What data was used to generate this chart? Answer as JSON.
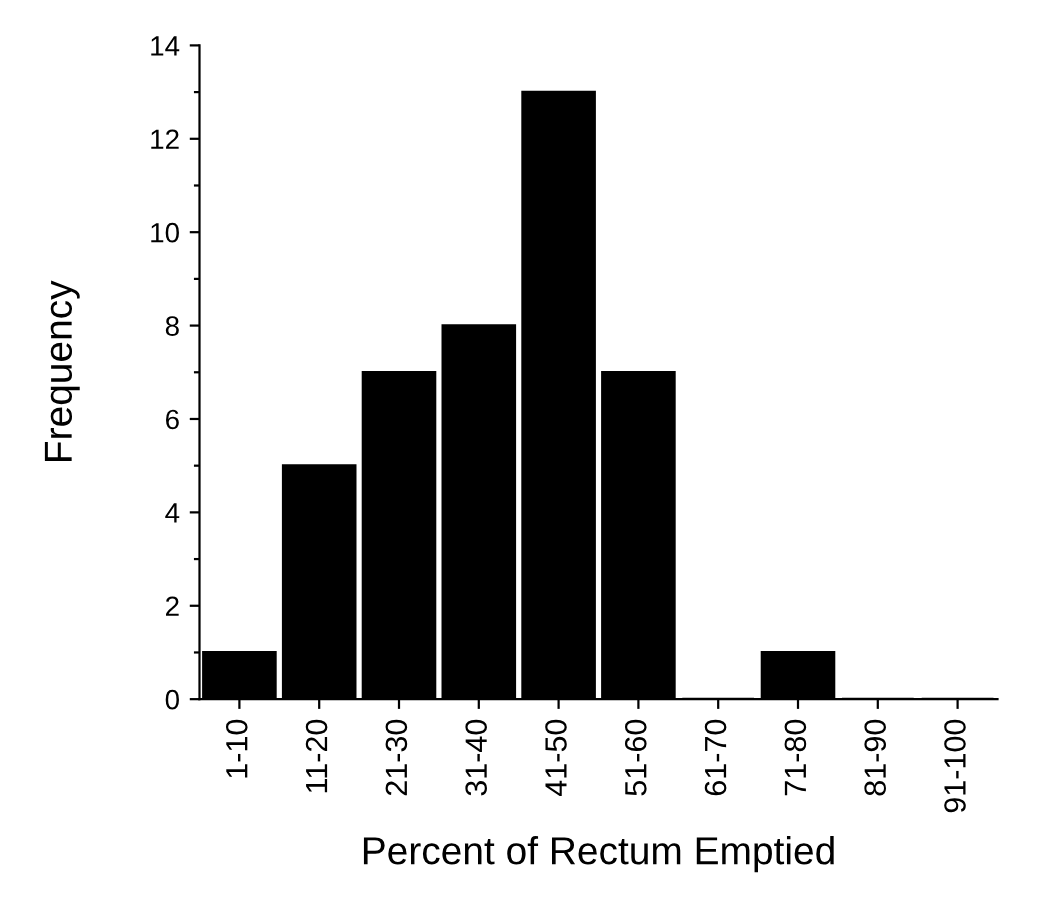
{
  "chart_data": {
    "type": "bar",
    "xlabel": "Percent of Rectum Emptied",
    "ylabel": "Frequency",
    "categories": [
      "1-10",
      "11-20",
      "21-30",
      "31-40",
      "41-50",
      "51-60",
      "61-70",
      "71-80",
      "81-90",
      "91-100"
    ],
    "values": [
      1,
      5,
      7,
      8,
      13,
      7,
      0,
      1,
      0,
      0
    ],
    "color": "#000000",
    "ylim": [
      0,
      14
    ],
    "yticks": [
      0,
      {
        "value": 1,
        "label": null
      },
      2,
      {
        "value": 3,
        "label": null
      },
      4,
      {
        "value": 5,
        "label": null
      },
      6,
      {
        "value": 7,
        "label": null
      },
      8,
      {
        "value": 9,
        "label": null
      },
      10,
      {
        "value": 11,
        "label": null
      },
      12,
      {
        "value": 13,
        "label": null
      },
      14
    ],
    "grid": false,
    "legend": false
  }
}
